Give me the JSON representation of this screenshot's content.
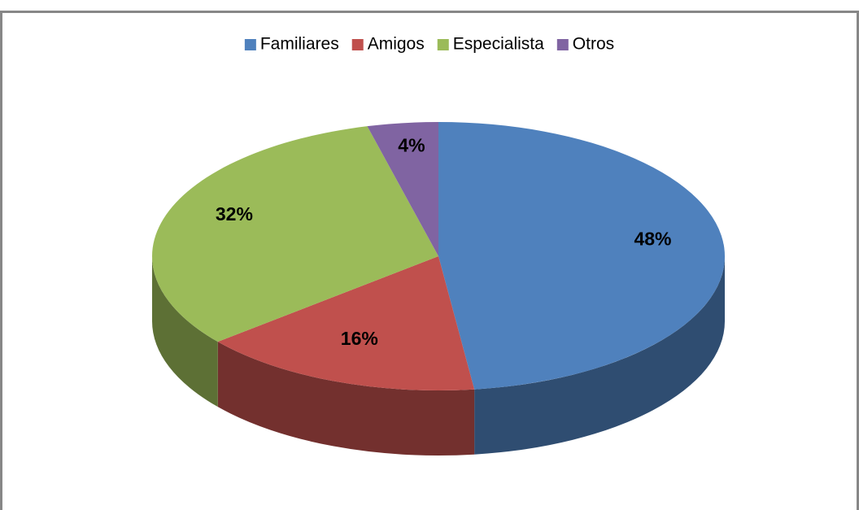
{
  "chart_data": {
    "type": "pie",
    "categories": [
      "Familiares",
      "Amigos",
      "Especialista",
      "Otros"
    ],
    "values": [
      48,
      16,
      32,
      4
    ],
    "value_labels": [
      "48%",
      "16%",
      "32%",
      "4%"
    ],
    "colors": [
      "#4f81bd",
      "#c0504d",
      "#9bbb59",
      "#8064a2"
    ],
    "legend": "top"
  }
}
